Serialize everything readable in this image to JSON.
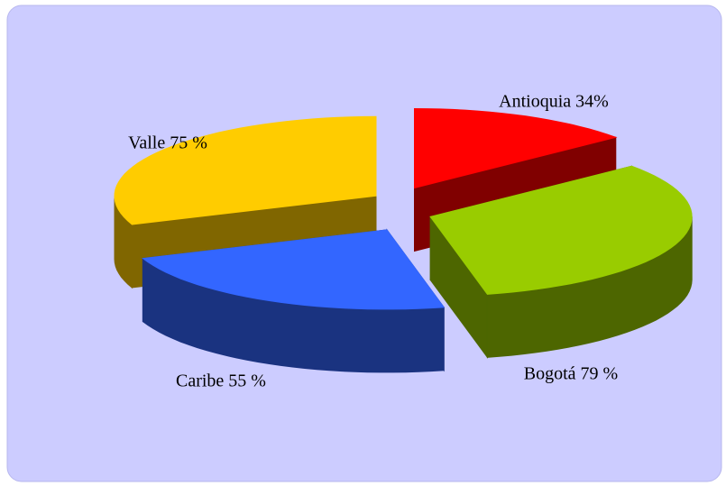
{
  "chart_data": {
    "type": "pie3d",
    "values": [
      34,
      79,
      55,
      75
    ],
    "value_labels": [
      "Antioquia 34%",
      "Bogotá 79 %",
      "Caribe 55 %",
      "Valle 75 %"
    ],
    "colors": [
      "#ff0000",
      "#99cc00",
      "#3366ff",
      "#ffcc00"
    ]
  }
}
